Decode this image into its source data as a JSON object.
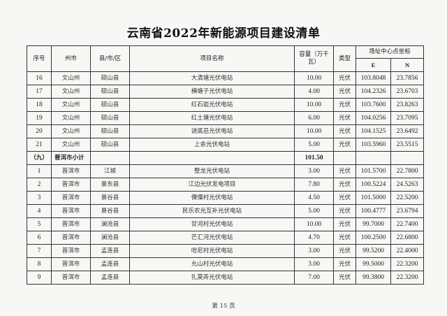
{
  "title": "云南省2022年新能源项目建设清单",
  "headers": {
    "seq": "序号",
    "prefecture": "州市",
    "county": "县/市/区",
    "project": "项目名称",
    "capacity": "容量（万千瓦）",
    "type": "类型",
    "coords": "场址中心点坐标",
    "e": "E",
    "n": "N"
  },
  "rows_a": [
    {
      "seq": "16",
      "prefecture": "文山州",
      "county": "砚山县",
      "project": "大清塘光伏电站",
      "capacity": "10.00",
      "type": "光伏",
      "e": "103.8048",
      "n": "23.7856"
    },
    {
      "seq": "17",
      "prefecture": "文山州",
      "county": "砚山县",
      "project": "横塘子光伏电站",
      "capacity": "4.00",
      "type": "光伏",
      "e": "104.2326",
      "n": "23.6703"
    },
    {
      "seq": "18",
      "prefecture": "文山州",
      "county": "砚山县",
      "project": "红石岩光伏电站",
      "capacity": "10.00",
      "type": "光伏",
      "e": "103.7600",
      "n": "23.8263"
    },
    {
      "seq": "19",
      "prefecture": "文山州",
      "county": "砚山县",
      "project": "红土塘光伏电站",
      "capacity": "6.00",
      "type": "光伏",
      "e": "104.0256",
      "n": "23.7095"
    },
    {
      "seq": "20",
      "prefecture": "文山州",
      "county": "砚山县",
      "project": "谜底邑光伏电站",
      "capacity": "10.00",
      "type": "光伏",
      "e": "104.1525",
      "n": "23.6492"
    },
    {
      "seq": "21",
      "prefecture": "文山州",
      "county": "砚山县",
      "project": "上余光伏电站",
      "capacity": "5.00",
      "type": "光伏",
      "e": "103.5960",
      "n": "23.5515"
    }
  ],
  "subtotal": {
    "seq": "（九）",
    "label": "普洱市小计",
    "capacity": "101.50"
  },
  "rows_b": [
    {
      "seq": "1",
      "prefecture": "普洱市",
      "county": "江城",
      "project": "整龙光伏电站",
      "capacity": "3.00",
      "type": "光伏",
      "e": "101.5700",
      "n": "22.7800"
    },
    {
      "seq": "2",
      "prefecture": "普洱市",
      "county": "景东县",
      "project": "江边光伏发电项目",
      "capacity": "7.80",
      "type": "光伏",
      "e": "100.5224",
      "n": "24.5263"
    },
    {
      "seq": "3",
      "prefecture": "普洱市",
      "county": "景谷县",
      "project": "傈僳村光伏电站",
      "capacity": "4.50",
      "type": "光伏",
      "e": "101.5000",
      "n": "22.5200"
    },
    {
      "seq": "4",
      "prefecture": "普洱市",
      "county": "景谷县",
      "project": "民乐农光互补光伏电站",
      "capacity": "5.00",
      "type": "光伏",
      "e": "100.4777",
      "n": "23.6794"
    },
    {
      "seq": "5",
      "prefecture": "普洱市",
      "county": "澜沧县",
      "project": "甘河村光伏电站",
      "capacity": "10.00",
      "type": "光伏",
      "e": "99.7000",
      "n": "22.7400"
    },
    {
      "seq": "6",
      "prefecture": "普洱市",
      "county": "澜沧县",
      "project": "芒汇河光伏电站",
      "capacity": "4.70",
      "type": "光伏",
      "e": "100.2500",
      "n": "22.6800"
    },
    {
      "seq": "7",
      "prefecture": "普洱市",
      "county": "孟连县",
      "project": "哈尼村光伏电站",
      "capacity": "3.00",
      "type": "光伏",
      "e": "99.5200",
      "n": "22.4000"
    },
    {
      "seq": "8",
      "prefecture": "普洱市",
      "county": "孟连县",
      "project": "允山村光伏电站",
      "capacity": "3.00",
      "type": "光伏",
      "e": "99.5000",
      "n": "22.3200"
    },
    {
      "seq": "9",
      "prefecture": "普洱市",
      "county": "孟连县",
      "project": "扎莫弄光伏电站",
      "capacity": "7.00",
      "type": "光伏",
      "e": "99.3800",
      "n": "22.3200"
    }
  ],
  "footer": "第 15 页"
}
